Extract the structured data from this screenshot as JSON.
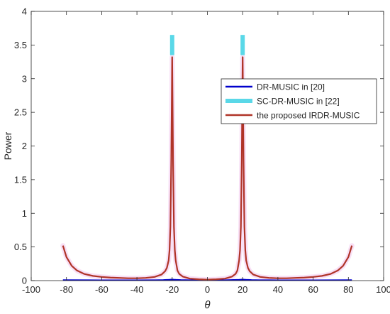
{
  "chart_data": {
    "type": "line",
    "title": "",
    "xlabel": "θ",
    "ylabel": "Power",
    "xlim": [
      -100,
      100
    ],
    "ylim": [
      0,
      4
    ],
    "xticks": [
      -100,
      -80,
      -60,
      -40,
      -20,
      0,
      20,
      40,
      60,
      80,
      100
    ],
    "yticks": [
      0,
      0.5,
      1,
      1.5,
      2,
      2.5,
      3,
      3.5,
      4
    ],
    "xtick_labels": [
      "-100",
      "-80",
      "-60",
      "-40",
      "-20",
      "0",
      "20",
      "40",
      "60",
      "80",
      "100"
    ],
    "ytick_labels": [
      "0",
      "0.5",
      "1",
      "1.5",
      "2",
      "2.5",
      "3",
      "3.5",
      "4"
    ],
    "grid": false,
    "legend_position": "right",
    "series": [
      {
        "name": "DR-MUSIC in [20]",
        "color": "#0000cc",
        "x": [
          -82,
          -60,
          -40,
          -30,
          -25,
          -22,
          -21,
          -20,
          -19,
          -18,
          -15,
          -10,
          0,
          10,
          18,
          19,
          20,
          21,
          22,
          25,
          30,
          40,
          60,
          82
        ],
        "y": [
          0.005,
          0.003,
          0.003,
          0.004,
          0.006,
          0.01,
          0.012,
          0.015,
          0.012,
          0.01,
          0.006,
          0.004,
          0.003,
          0.004,
          0.01,
          0.012,
          0.015,
          0.012,
          0.01,
          0.006,
          0.004,
          0.003,
          0.003,
          0.005
        ]
      },
      {
        "name": "SC-DR-MUSIC in [22]",
        "color": "#5ad8e8",
        "x": [
          -20,
          -20,
          20,
          20
        ],
        "y": [
          3.35,
          3.65,
          3.35,
          3.65
        ]
      },
      {
        "name": "the proposed IRDR-MUSIC",
        "color": "#b03428",
        "x": [
          -82,
          -80,
          -77,
          -74,
          -70,
          -65,
          -60,
          -55,
          -50,
          -45,
          -40,
          -35,
          -30,
          -26,
          -24,
          -23,
          -22,
          -21.5,
          -21,
          -20.5,
          -20,
          -19.5,
          -19,
          -18.5,
          -18,
          -17,
          -16,
          -14,
          -10,
          -5,
          0,
          5,
          10,
          14,
          16,
          17,
          18,
          18.5,
          19,
          19.5,
          20,
          20.5,
          21,
          21.5,
          22,
          23,
          24,
          26,
          30,
          35,
          40,
          45,
          50,
          55,
          60,
          65,
          70,
          74,
          77,
          80,
          82
        ],
        "y": [
          0.52,
          0.35,
          0.22,
          0.15,
          0.1,
          0.07,
          0.055,
          0.045,
          0.04,
          0.035,
          0.035,
          0.04,
          0.055,
          0.09,
          0.14,
          0.19,
          0.3,
          0.45,
          0.8,
          1.8,
          3.32,
          1.8,
          0.8,
          0.45,
          0.3,
          0.15,
          0.1,
          0.06,
          0.03,
          0.02,
          0.015,
          0.02,
          0.03,
          0.06,
          0.1,
          0.15,
          0.3,
          0.45,
          0.8,
          1.8,
          3.32,
          1.8,
          0.8,
          0.45,
          0.3,
          0.19,
          0.14,
          0.09,
          0.055,
          0.04,
          0.035,
          0.035,
          0.04,
          0.045,
          0.055,
          0.07,
          0.1,
          0.15,
          0.22,
          0.35,
          0.52
        ]
      }
    ]
  }
}
